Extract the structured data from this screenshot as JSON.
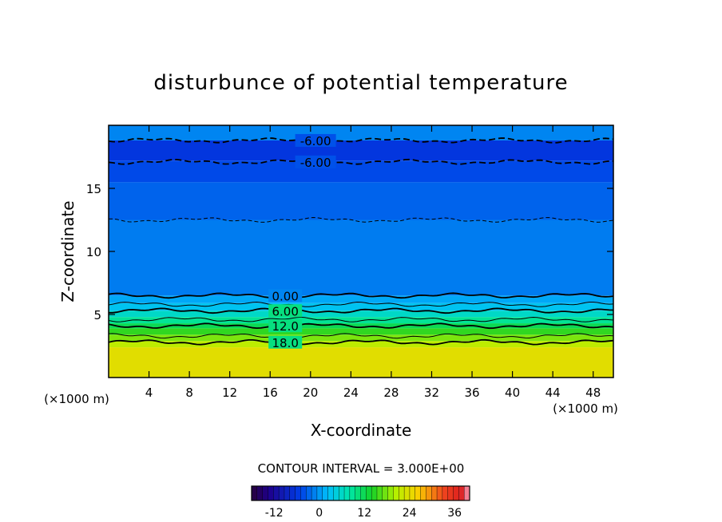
{
  "chart_data": {
    "type": "heatmap",
    "title": "disturbunce of potential temperature",
    "xlabel": "X-coordinate",
    "ylabel": "Z-coordinate",
    "x_unit_left": "(×1000 m)",
    "x_unit_right": "(×1000 m)",
    "xlim": [
      0,
      50
    ],
    "ylim": [
      0,
      20
    ],
    "x_ticks": [
      4,
      8,
      12,
      16,
      20,
      24,
      28,
      32,
      36,
      40,
      44,
      48
    ],
    "y_ticks": [
      5,
      10,
      15
    ],
    "contour_interval_text": "CONTOUR INTERVAL = 3.000E+00",
    "colorbar": {
      "range": [
        -18,
        40
      ],
      "tick_values": [
        -12,
        0,
        12,
        24,
        36
      ],
      "tick_labels": [
        "-12",
        "0",
        "12",
        "24",
        "36"
      ]
    },
    "fill_bands": [
      {
        "z_min": 0.0,
        "z_max": 2.4,
        "value": 24
      },
      {
        "z_min": 2.4,
        "z_max": 2.9,
        "value": 21
      },
      {
        "z_min": 2.9,
        "z_max": 3.4,
        "value": 18
      },
      {
        "z_min": 3.4,
        "z_max": 3.9,
        "value": 15
      },
      {
        "z_min": 3.9,
        "z_max": 4.3,
        "value": 12
      },
      {
        "z_min": 4.3,
        "z_max": 4.8,
        "value": 9
      },
      {
        "z_min": 4.8,
        "z_max": 5.3,
        "value": 6
      },
      {
        "z_min": 5.3,
        "z_max": 5.9,
        "value": 3
      },
      {
        "z_min": 5.9,
        "z_max": 6.5,
        "value": 1
      },
      {
        "z_min": 6.5,
        "z_max": 12.5,
        "value": -1.5
      },
      {
        "z_min": 12.5,
        "z_max": 15.5,
        "value": -3
      },
      {
        "z_min": 15.5,
        "z_max": 17.2,
        "value": -4.5
      },
      {
        "z_min": 17.2,
        "z_max": 18.8,
        "value": -6
      },
      {
        "z_min": 18.8,
        "z_max": 20.0,
        "value": -1
      }
    ],
    "contours": [
      {
        "label": "18.0",
        "z": 2.8,
        "style": "solid"
      },
      {
        "label": "",
        "z": 3.3,
        "style": "solid-thin"
      },
      {
        "label": "12.0",
        "z": 4.1,
        "style": "solid"
      },
      {
        "label": "",
        "z": 4.6,
        "style": "solid-thin"
      },
      {
        "label": "6.00",
        "z": 5.3,
        "style": "solid"
      },
      {
        "label": "",
        "z": 5.8,
        "style": "solid-thin"
      },
      {
        "label": "0.00",
        "z": 6.5,
        "style": "solid"
      },
      {
        "label": "",
        "z": 12.5,
        "style": "dashed-thin"
      },
      {
        "label": "-6.00",
        "z": 17.1,
        "style": "dashed"
      },
      {
        "label": "-6.00",
        "z": 18.8,
        "style": "dashed"
      }
    ]
  }
}
